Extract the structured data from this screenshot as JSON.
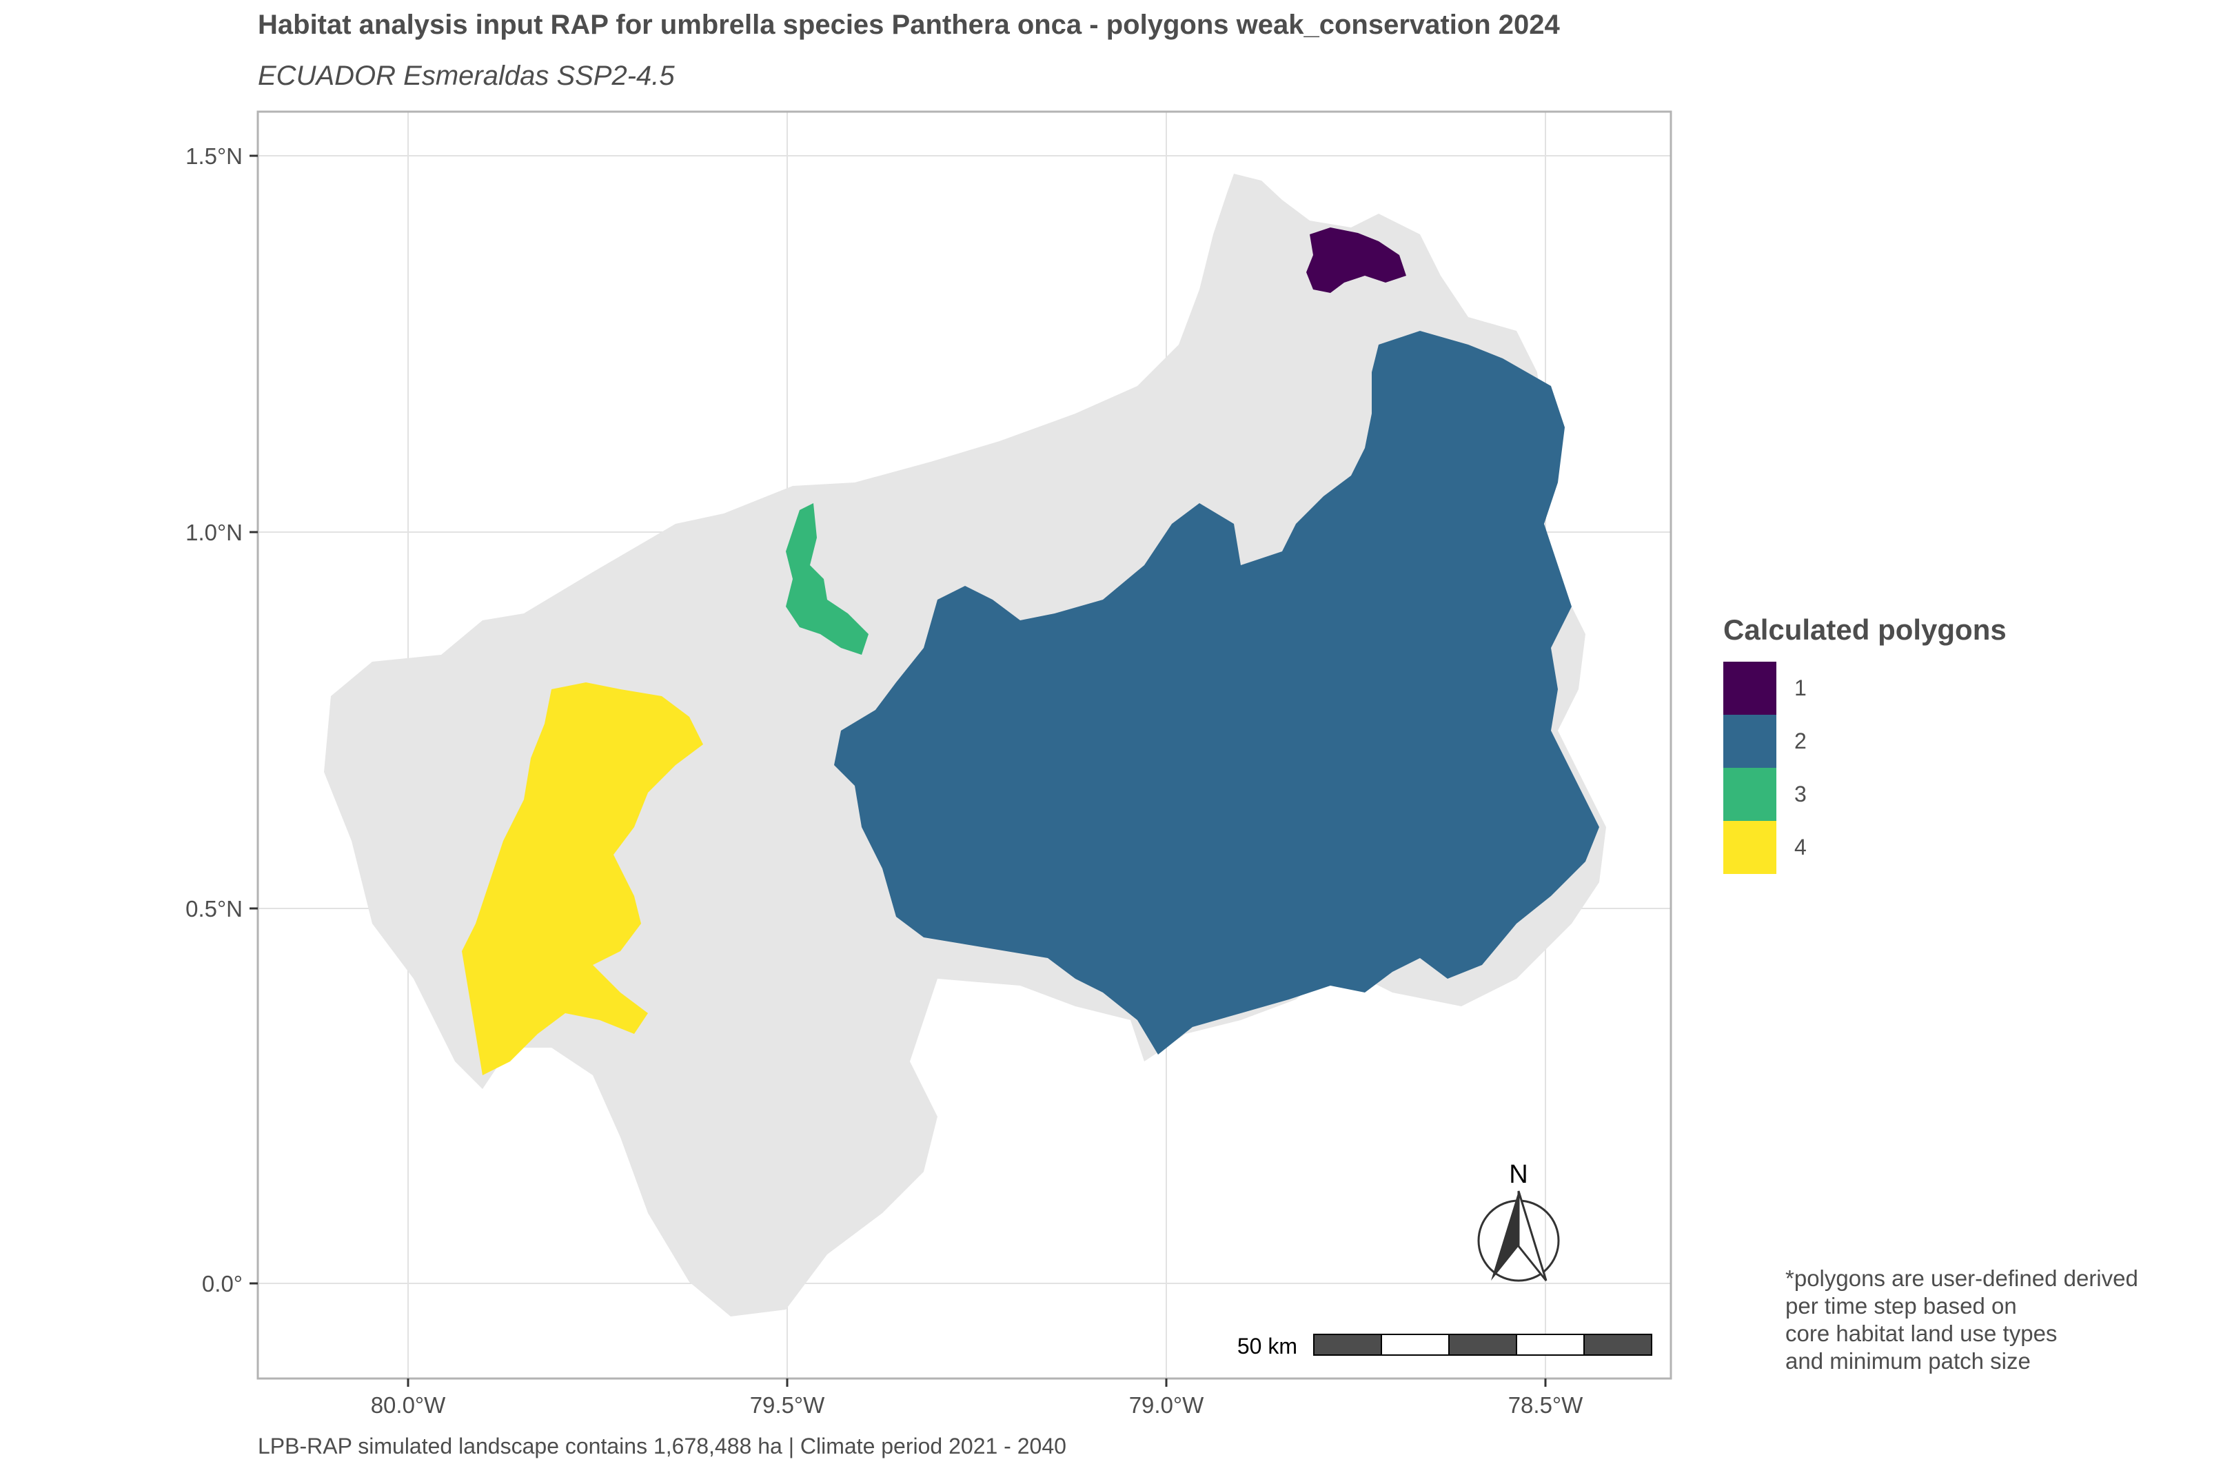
{
  "title": "Habitat analysis input RAP for umbrella species Panthera onca - polygons weak_conservation 2024",
  "subtitle": "ECUADOR Esmeraldas SSP2-4.5",
  "caption": "LPB-RAP simulated landscape contains 1,678,488 ha | Climate period 2021 - 2040",
  "note_lines": [
    "*polygons are user-defined derived",
    "per time step based on",
    "core habitat land use types",
    "and minimum patch size"
  ],
  "legend": {
    "title": "Calculated polygons",
    "items": [
      {
        "label": "1",
        "color": "#440154"
      },
      {
        "label": "2",
        "color": "#31688e"
      },
      {
        "label": "3",
        "color": "#35b779"
      },
      {
        "label": "4",
        "color": "#fde725"
      }
    ]
  },
  "axes": {
    "y_ticks": [
      "1.5°N",
      "1.0°N",
      "0.5°N",
      "0.0°"
    ],
    "x_ticks": [
      "80.0°W",
      "79.5°W",
      "79.0°W",
      "78.5°W"
    ]
  },
  "north_arrow": {
    "label": "N",
    "icon": "north-arrow-icon"
  },
  "scale_bar": {
    "label": "50 km"
  },
  "colors": {
    "landscape": "#e6e6e6",
    "grid": "#e0e0e0",
    "frame": "#b3b3b3"
  }
}
